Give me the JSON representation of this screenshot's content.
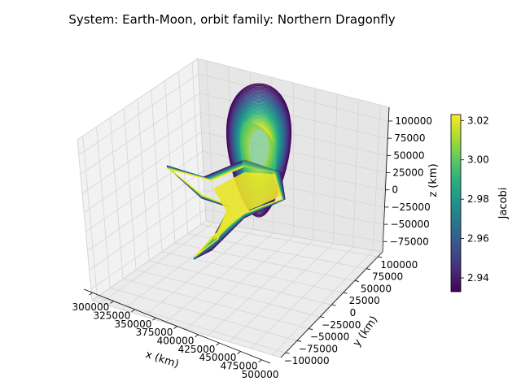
{
  "chart_data": {
    "type": "surface3d",
    "title": "System: Earth-Moon, orbit family: Northern Dragonfly",
    "xlabel": "x (km)",
    "ylabel": "y (km)",
    "zlabel": "z (km)",
    "x_ticks": [
      "300000",
      "325000",
      "350000",
      "375000",
      "400000",
      "425000",
      "450000",
      "475000",
      "500000"
    ],
    "y_ticks": [
      "−100000",
      "−75000",
      "−50000",
      "−25000",
      "0",
      "25000",
      "50000",
      "75000",
      "100000"
    ],
    "z_ticks": [
      "−75000",
      "−50000",
      "−25000",
      "0",
      "25000",
      "50000",
      "75000",
      "100000"
    ],
    "xlim": [
      290000,
      510000
    ],
    "ylim": [
      -110000,
      110000
    ],
    "zlim": [
      -90000,
      120000
    ],
    "colorbar": {
      "label": "Jacobi",
      "colormap": "viridis",
      "range": [
        2.933,
        3.023
      ],
      "ticks": [
        "2.94",
        "2.96",
        "2.98",
        "3.00",
        "3.02"
      ]
    },
    "grid": true
  }
}
